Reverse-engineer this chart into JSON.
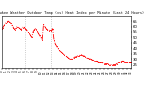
{
  "title": "Milwaukee Weather Outdoor Temp (vs) Heat Index per Minute (Last 24 Hours)",
  "line_color": "#ff0000",
  "line_style": "-.",
  "line_width": 0.6,
  "marker": ".",
  "marker_size": 1.2,
  "background_color": "#ffffff",
  "vline_color": "#bbbbbb",
  "vline_style": ":",
  "vline_positions": [
    0.18,
    0.38
  ],
  "ylim": [
    22,
    70
  ],
  "yticks": [
    25,
    30,
    35,
    40,
    45,
    50,
    55,
    60,
    65
  ],
  "ytick_labels": [
    "25",
    "30",
    "35",
    "40",
    "45",
    "50",
    "55",
    "60",
    "65"
  ],
  "x_data": [
    0,
    1,
    2,
    3,
    4,
    5,
    6,
    7,
    8,
    9,
    10,
    11,
    12,
    13,
    14,
    15,
    16,
    17,
    18,
    19,
    20,
    21,
    22,
    23,
    24,
    25,
    26,
    27,
    28,
    29,
    30,
    31,
    32,
    33,
    34,
    35,
    36,
    37,
    38,
    39,
    40,
    41,
    42,
    43,
    44,
    45,
    46,
    47,
    48,
    49,
    50,
    51,
    52,
    53,
    54,
    55,
    56,
    57,
    58,
    59,
    60,
    61,
    62,
    63,
    64,
    65,
    66,
    67,
    68,
    69,
    70,
    71,
    72,
    73,
    74,
    75,
    76,
    77,
    78,
    79,
    80,
    81,
    82,
    83,
    84,
    85,
    86,
    87,
    88,
    89,
    90,
    91,
    92,
    93,
    94,
    95,
    96,
    97,
    98,
    99
  ],
  "y_data": [
    58,
    59,
    61,
    63,
    64,
    65,
    64,
    63,
    61,
    59,
    57,
    59,
    60,
    59,
    58,
    57,
    59,
    60,
    58,
    57,
    55,
    54,
    52,
    50,
    55,
    57,
    58,
    56,
    54,
    52,
    50,
    48,
    62,
    60,
    58,
    57,
    56,
    57,
    56,
    58,
    48,
    44,
    42,
    40,
    38,
    37,
    36,
    35,
    34,
    33,
    32,
    31,
    30,
    30,
    30,
    31,
    32,
    32,
    33,
    33,
    34,
    34,
    33,
    33,
    32,
    31,
    31,
    30,
    30,
    29,
    29,
    28,
    28,
    28,
    27,
    27,
    27,
    27,
    26,
    26,
    26,
    26,
    25,
    25,
    25,
    25,
    25,
    25,
    26,
    27,
    27,
    27,
    28,
    28,
    27,
    27,
    27,
    27,
    27,
    27
  ]
}
